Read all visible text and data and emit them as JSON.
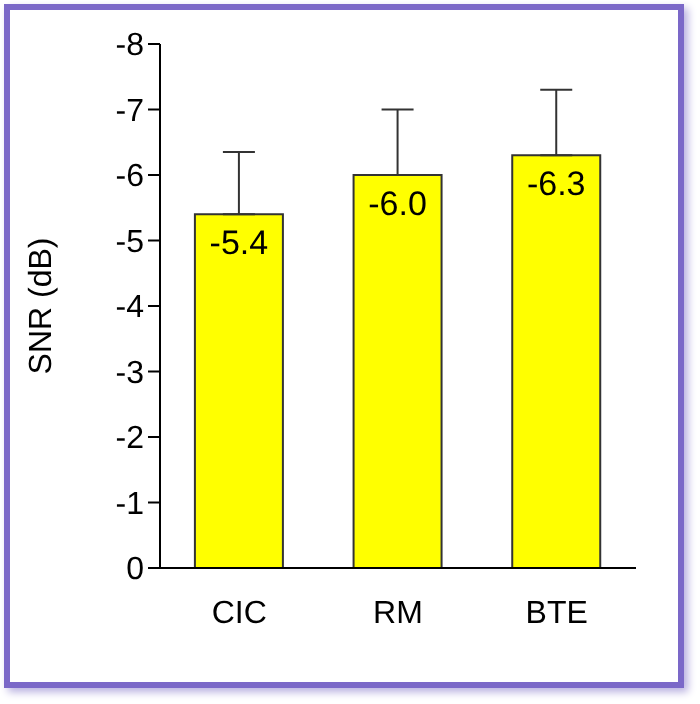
{
  "chart_data": {
    "type": "bar",
    "ylabel": "SNR (dB)",
    "categories": [
      "CIC",
      "RM",
      "BTE"
    ],
    "values": [
      -5.4,
      -6.0,
      -6.3
    ],
    "value_labels": [
      "-5.4",
      "-6.0",
      "-6.3"
    ],
    "errors": [
      [
        -6.35,
        -5.4
      ],
      [
        -7.0,
        -6.0
      ],
      [
        -7.3,
        -6.3
      ]
    ],
    "color": "#ffff00",
    "ylim": [
      0,
      -8
    ],
    "yticks": [
      0,
      -1,
      -2,
      -3,
      -4,
      -5,
      -6,
      -7,
      -8
    ]
  }
}
